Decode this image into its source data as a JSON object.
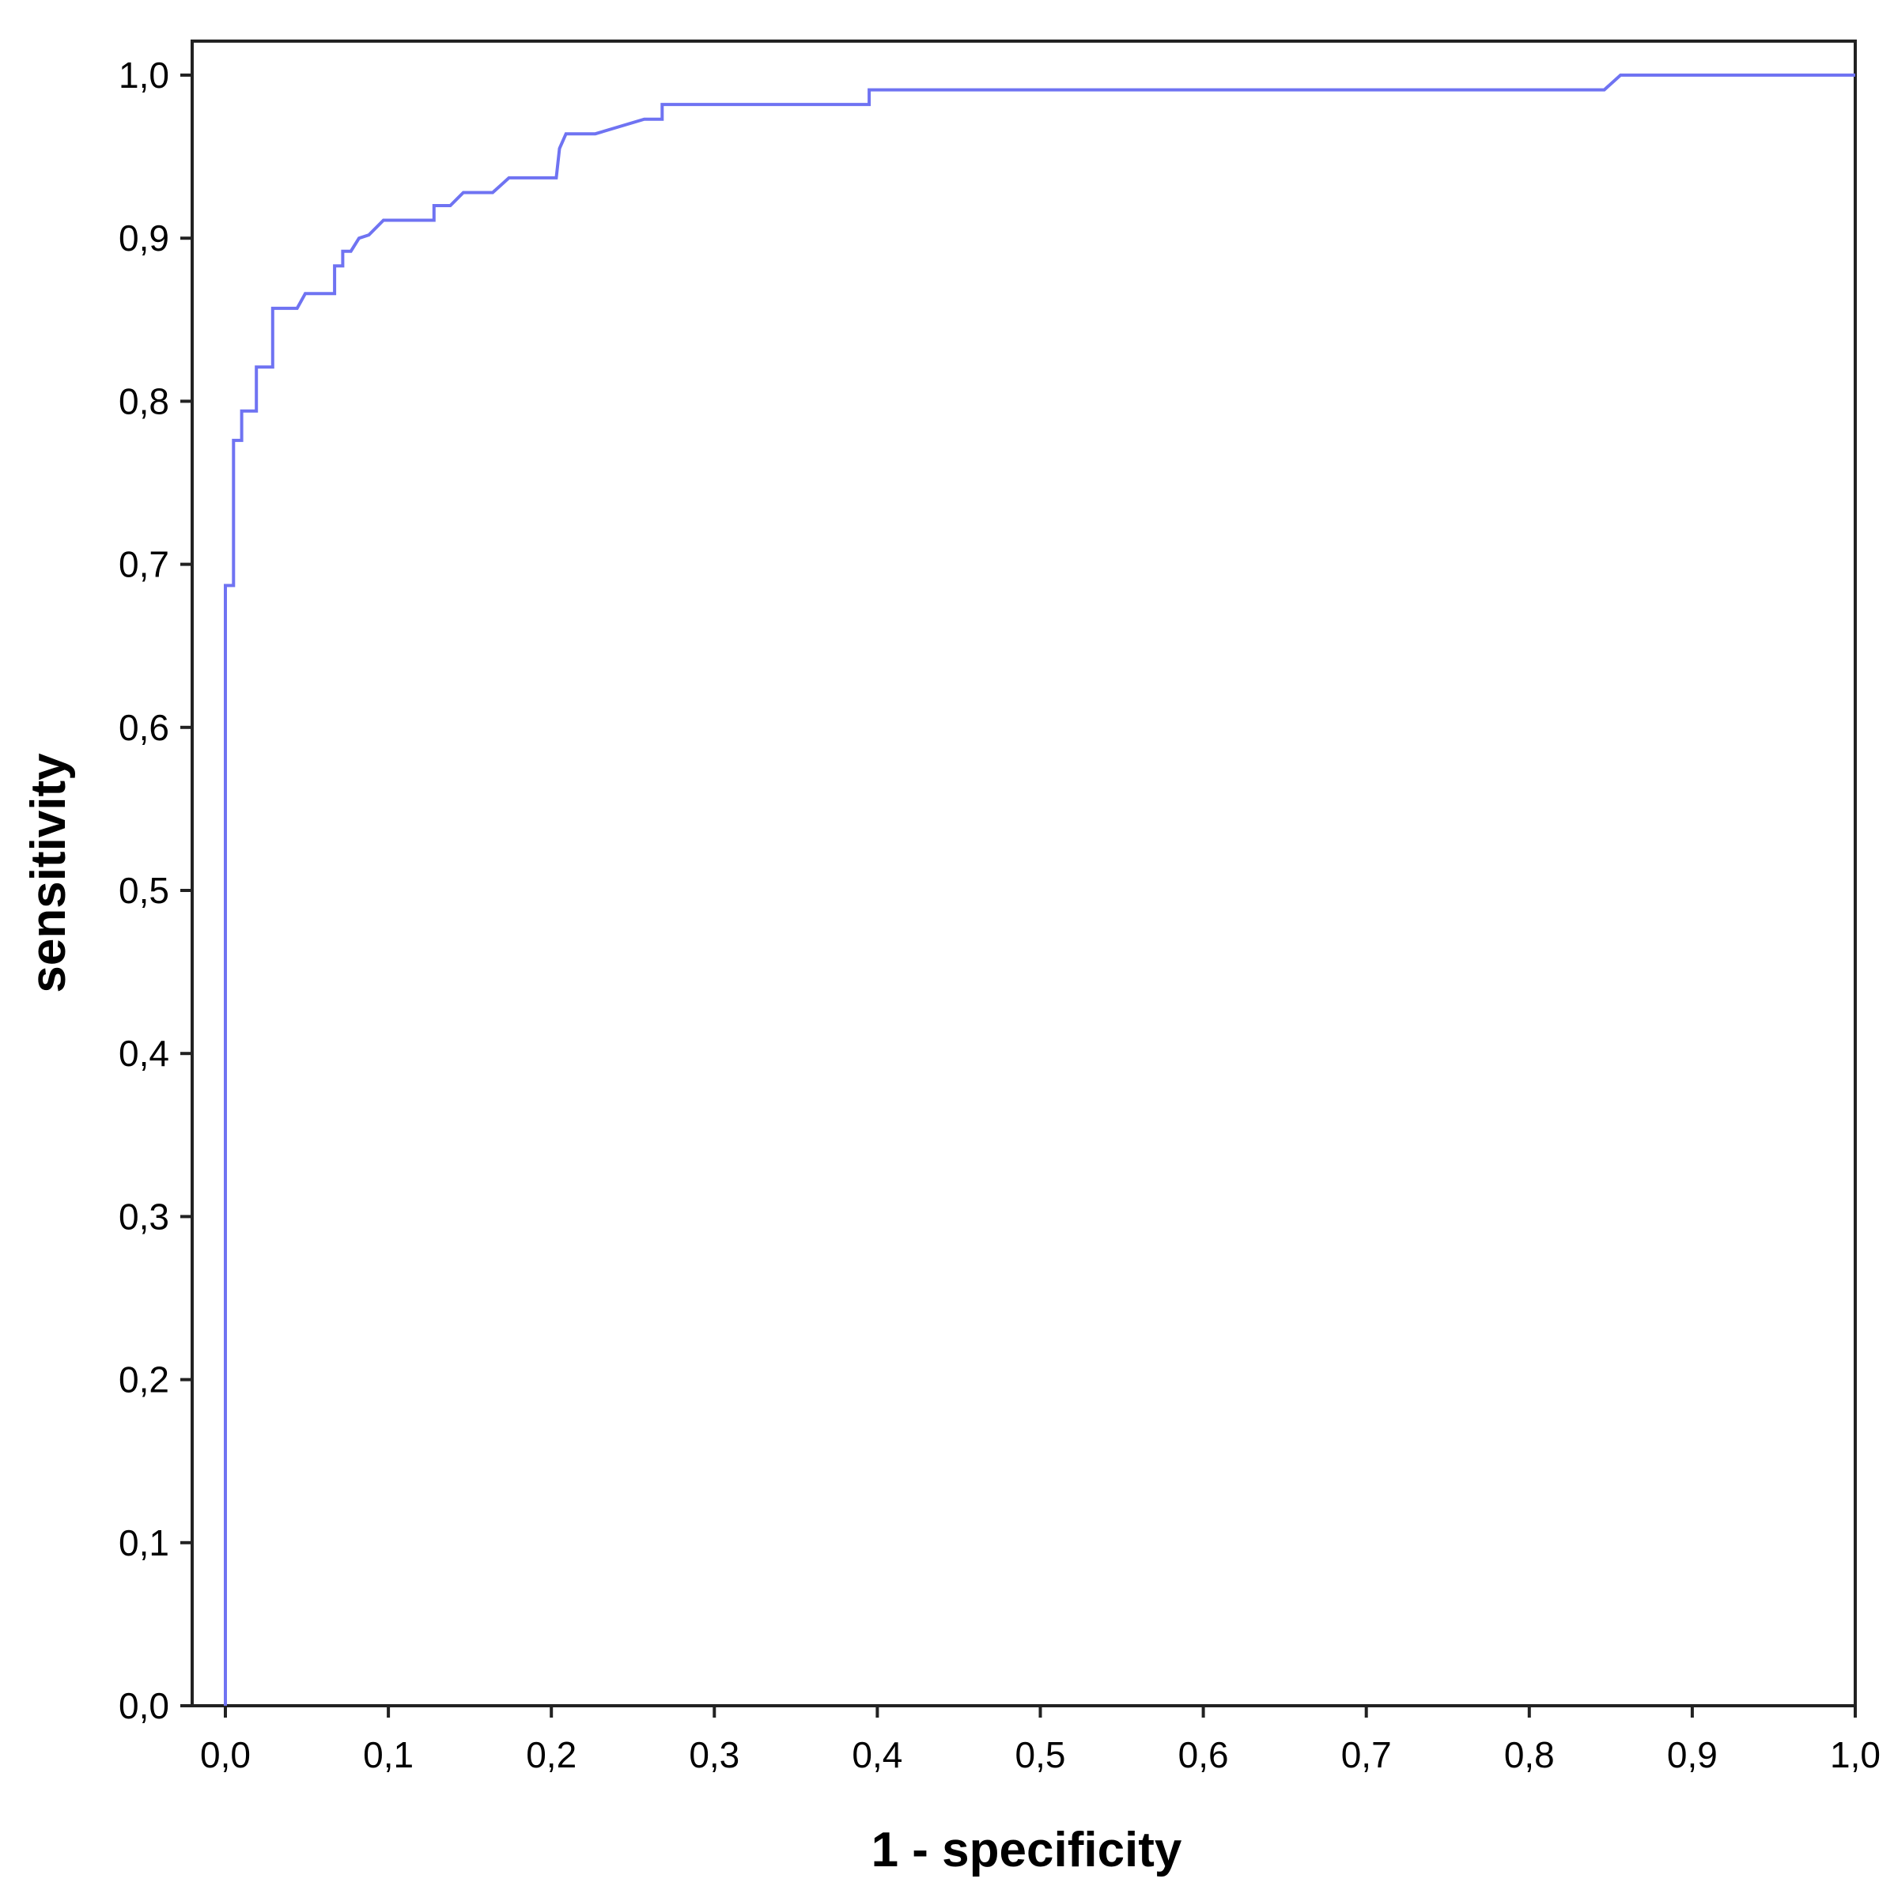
{
  "chart_data": {
    "type": "line",
    "title": "",
    "xlabel": "1 - specificity",
    "ylabel": "sensitivity",
    "xlim": [
      0,
      1
    ],
    "ylim": [
      0,
      1
    ],
    "x_ticks": [
      "0,0",
      "0,1",
      "0,2",
      "0,3",
      "0,4",
      "0,5",
      "0,6",
      "0,7",
      "0,8",
      "0,9",
      "1,0"
    ],
    "y_ticks": [
      "0,0",
      "0,1",
      "0,2",
      "0,3",
      "0,4",
      "0,5",
      "0,6",
      "0,7",
      "0,8",
      "0,9",
      "1,0"
    ],
    "grid": false,
    "legend": "none",
    "line_color": "#6f73f2",
    "series": [
      {
        "points": [
          [
            0.0,
            0.0
          ],
          [
            0.0,
            0.687
          ],
          [
            0.005,
            0.687
          ],
          [
            0.005,
            0.776
          ],
          [
            0.01,
            0.776
          ],
          [
            0.01,
            0.794
          ],
          [
            0.019,
            0.794
          ],
          [
            0.019,
            0.821
          ],
          [
            0.029,
            0.821
          ],
          [
            0.029,
            0.857
          ],
          [
            0.044,
            0.857
          ],
          [
            0.049,
            0.866
          ],
          [
            0.067,
            0.866
          ],
          [
            0.067,
            0.883
          ],
          [
            0.072,
            0.883
          ],
          [
            0.072,
            0.892
          ],
          [
            0.077,
            0.892
          ],
          [
            0.082,
            0.9
          ],
          [
            0.088,
            0.902
          ],
          [
            0.097,
            0.911
          ],
          [
            0.128,
            0.911
          ],
          [
            0.128,
            0.92
          ],
          [
            0.138,
            0.92
          ],
          [
            0.146,
            0.928
          ],
          [
            0.164,
            0.928
          ],
          [
            0.174,
            0.937
          ],
          [
            0.203,
            0.937
          ],
          [
            0.205,
            0.955
          ],
          [
            0.209,
            0.964
          ],
          [
            0.227,
            0.964
          ],
          [
            0.257,
            0.973
          ],
          [
            0.268,
            0.973
          ],
          [
            0.268,
            0.982
          ],
          [
            0.395,
            0.982
          ],
          [
            0.395,
            0.991
          ],
          [
            0.846,
            0.991
          ],
          [
            0.856,
            1.0
          ],
          [
            1.0,
            1.0
          ]
        ]
      }
    ]
  }
}
